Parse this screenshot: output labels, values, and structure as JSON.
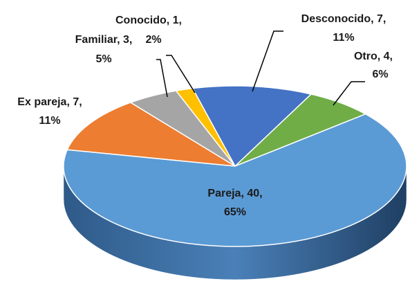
{
  "chart_data": {
    "type": "pie3d",
    "categories": [
      "Desconocido",
      "Otro",
      "Pareja",
      "Ex pareja",
      "Familiar",
      "Conocido"
    ],
    "values": [
      7,
      4,
      40,
      7,
      3,
      1
    ],
    "percents": [
      11,
      6,
      65,
      11,
      5,
      2
    ],
    "data_labels": [
      [
        "Desconocido, 7,",
        "11%"
      ],
      [
        "Otro, 4,",
        "6%"
      ],
      [
        "Pareja, 40,",
        "65%"
      ],
      [
        "Ex pareja, 7,",
        "11%"
      ],
      [
        "Familiar, 3,",
        "5%"
      ],
      [
        "Conocido, 1,",
        "2%"
      ]
    ],
    "colors": [
      "#4472c4",
      "#70ad47",
      "#5b9bd5",
      "#ed7d31",
      "#a5a5a5",
      "#ffc000"
    ]
  }
}
